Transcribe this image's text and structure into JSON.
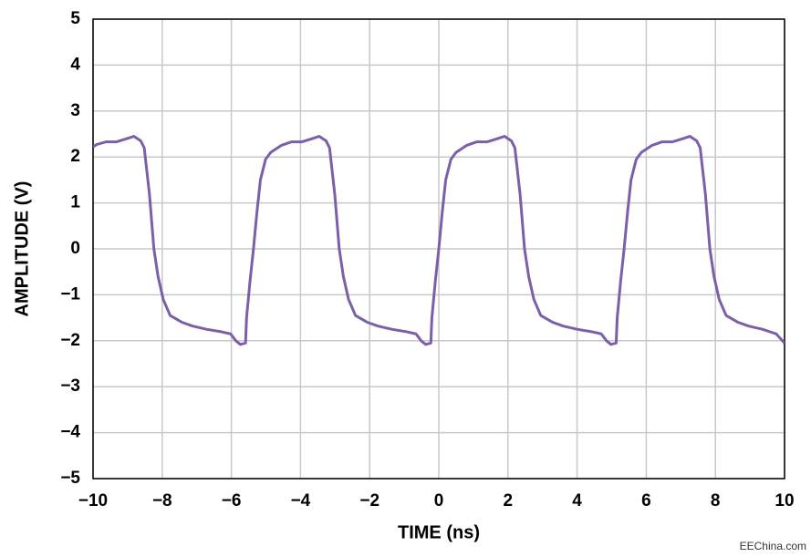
{
  "chart_data": {
    "type": "line",
    "xlabel": "TIME (ns)",
    "ylabel": "AMPLITUDE (V)",
    "watermark": "EEChina.com",
    "color": "#7b5fa8",
    "grid": true,
    "xlim": [
      -10,
      10
    ],
    "ylim": [
      -5,
      5
    ],
    "xticks": [
      {
        "value": -10,
        "label": "−10"
      },
      {
        "value": -8,
        "label": "−8"
      },
      {
        "value": -6,
        "label": "−6"
      },
      {
        "value": -4,
        "label": "−4"
      },
      {
        "value": -2,
        "label": "−2"
      },
      0,
      2,
      4,
      6,
      8,
      10
    ],
    "yticks": [
      {
        "value": -5,
        "label": "−5"
      },
      {
        "value": -4,
        "label": "−4"
      },
      {
        "value": -3,
        "label": "−3"
      },
      {
        "value": -2,
        "label": "−2"
      },
      {
        "value": -1,
        "label": "−1"
      },
      0,
      1,
      2,
      3,
      4,
      5
    ],
    "x": [
      -10,
      -9.9,
      -9.62,
      -9.32,
      -9.02,
      -8.82,
      -8.62,
      -8.52,
      -8.37,
      -8.24,
      -8.12,
      -7.97,
      -7.77,
      -7.42,
      -7.12,
      -6.72,
      -6.32,
      -6.02,
      -5.87,
      -5.74,
      -5.59,
      -5.56,
      -5.46,
      -5.36,
      -5.26,
      -5.16,
      -5.01,
      -4.86,
      -4.56,
      -4.26,
      -3.96,
      -3.66,
      -3.46,
      -3.26,
      -3.16,
      -3.01,
      -2.88,
      -2.76,
      -2.61,
      -2.41,
      -2.06,
      -1.76,
      -1.36,
      -0.96,
      -0.66,
      -0.51,
      -0.38,
      -0.23,
      -0.2,
      -0.1,
      0,
      0.1,
      0.2,
      0.35,
      0.5,
      0.8,
      1.1,
      1.4,
      1.7,
      1.9,
      2.1,
      2.2,
      2.35,
      2.48,
      2.6,
      2.75,
      2.95,
      3.3,
      3.6,
      4.0,
      4.4,
      4.7,
      4.85,
      4.98,
      5.13,
      5.16,
      5.26,
      5.36,
      5.46,
      5.56,
      5.71,
      5.86,
      6.16,
      6.46,
      6.76,
      7.06,
      7.26,
      7.46,
      7.56,
      7.71,
      7.84,
      7.96,
      8.11,
      8.31,
      8.66,
      8.96,
      9.36,
      9.76,
      10
    ],
    "values": [
      2.22,
      2.27,
      2.33,
      2.33,
      2.4,
      2.45,
      2.35,
      2.2,
      1.2,
      0,
      -0.6,
      -1.1,
      -1.45,
      -1.6,
      -1.68,
      -1.75,
      -1.8,
      -1.85,
      -2.0,
      -2.08,
      -2.05,
      -1.5,
      -0.7,
      0,
      0.8,
      1.5,
      1.95,
      2.1,
      2.25,
      2.33,
      2.33,
      2.4,
      2.45,
      2.35,
      2.2,
      1.2,
      0,
      -0.6,
      -1.1,
      -1.45,
      -1.6,
      -1.68,
      -1.75,
      -1.8,
      -1.85,
      -2.0,
      -2.08,
      -2.05,
      -1.5,
      -0.7,
      0,
      0.8,
      1.5,
      1.95,
      2.1,
      2.25,
      2.33,
      2.33,
      2.4,
      2.45,
      2.35,
      2.2,
      1.2,
      0,
      -0.6,
      -1.1,
      -1.45,
      -1.6,
      -1.68,
      -1.75,
      -1.8,
      -1.85,
      -2.0,
      -2.08,
      -2.05,
      -1.5,
      -0.7,
      0,
      0.8,
      1.5,
      1.95,
      2.1,
      2.25,
      2.33,
      2.33,
      2.4,
      2.45,
      2.35,
      2.2,
      1.2,
      0,
      -0.6,
      -1.1,
      -1.45,
      -1.6,
      -1.68,
      -1.75,
      -1.85,
      -2.05
    ]
  }
}
